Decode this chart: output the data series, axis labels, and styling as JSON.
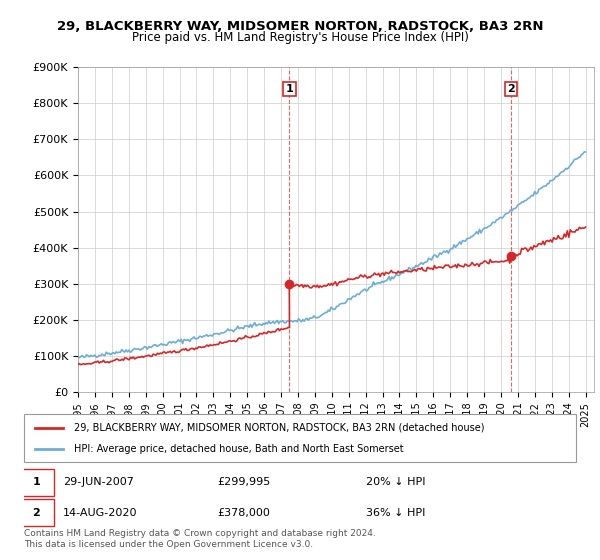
{
  "title": "29, BLACKBERRY WAY, MIDSOMER NORTON, RADSTOCK, BA3 2RN",
  "subtitle": "Price paid vs. HM Land Registry's House Price Index (HPI)",
  "legend_line1": "29, BLACKBERRY WAY, MIDSOMER NORTON, RADSTOCK, BA3 2RN (detached house)",
  "legend_line2": "HPI: Average price, detached house, Bath and North East Somerset",
  "marker1_date": "29-JUN-2007",
  "marker1_price": 299995,
  "marker1_label": "20% ↓ HPI",
  "marker2_date": "14-AUG-2020",
  "marker2_price": 378000,
  "marker2_label": "36% ↓ HPI",
  "footnote": "Contains HM Land Registry data © Crown copyright and database right 2024.\nThis data is licensed under the Open Government Licence v3.0.",
  "hpi_color": "#6baed6",
  "price_color": "#d62728",
  "marker_color": "#d62728",
  "ylim": [
    0,
    900000
  ],
  "yticks": [
    0,
    100000,
    200000,
    300000,
    400000,
    500000,
    600000,
    700000,
    800000,
    900000
  ],
  "ytick_labels": [
    "£0",
    "£100K",
    "£200K",
    "£300K",
    "£400K",
    "£500K",
    "£600K",
    "£700K",
    "£800K",
    "£900K"
  ],
  "x_start_year": 1995,
  "x_end_year": 2025,
  "marker1_x": 2007.5,
  "marker2_x": 2020.6
}
